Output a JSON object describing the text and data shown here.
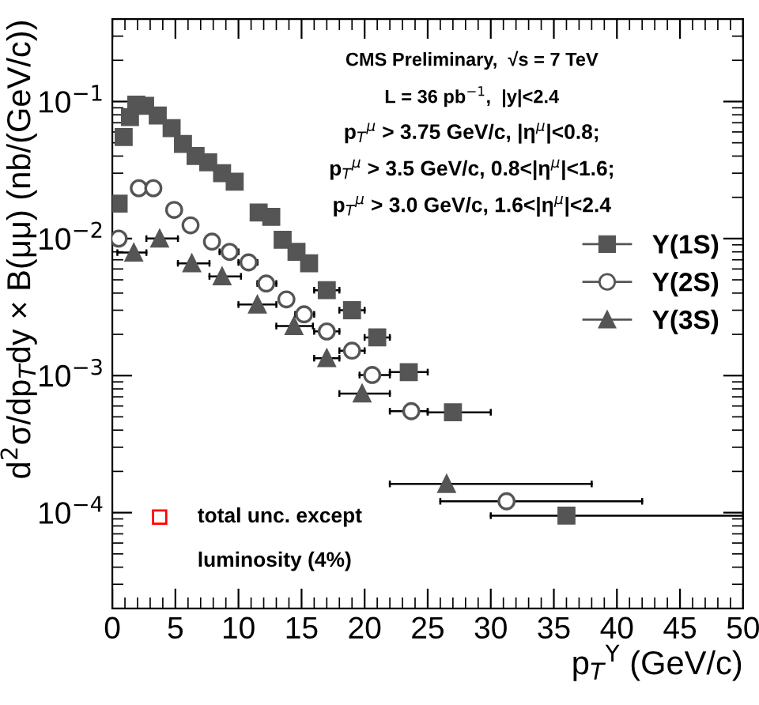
{
  "chart_data": {
    "type": "scatter",
    "xlabel": "p$_{T}$$^{Υ}$ (GeV/c)",
    "ylabel": "d$^{2}$σ/dp$_{T}$dy × B(μμ) (nb/(GeV/c))",
    "log": "y",
    "xlim": [
      0,
      50
    ],
    "ylim": [
      2e-05,
      0.4
    ],
    "xticks": [
      0,
      5,
      10,
      15,
      20,
      25,
      30,
      35,
      40,
      45,
      50
    ],
    "yticks": [
      {
        "value": 0.0001,
        "label": "10$^{−4}$"
      },
      {
        "value": 0.001,
        "label": "10$^{−3}$"
      },
      {
        "value": 0.01,
        "label": "10$^{−2}$"
      },
      {
        "value": 0.1,
        "label": "10$^{−1}$"
      }
    ],
    "grid": false,
    "legend": "right",
    "series": [
      {
        "name": "Υ(1S)",
        "color": "#555555",
        "marker": "square",
        "x": [
          0.5,
          0.9,
          1.4,
          1.9,
          2.6,
          3.6,
          4.7,
          5.6,
          6.6,
          7.6,
          8.7,
          9.7,
          11.6,
          12.6,
          13.5,
          14.6,
          15.6,
          17,
          19,
          21,
          23.5,
          27,
          36
        ],
        "values": [
          0.018,
          0.055,
          0.077,
          0.095,
          0.093,
          0.079,
          0.064,
          0.049,
          0.04,
          0.036,
          0.03,
          0.026,
          0.0155,
          0.0144,
          0.0098,
          0.008,
          0.0066,
          0.0042,
          0.003,
          0.0019,
          0.00106,
          0.00054,
          9.5e-05
        ],
        "xerrors": [
          null,
          null,
          null,
          null,
          null,
          null,
          null,
          null,
          null,
          null,
          null,
          null,
          null,
          null,
          null,
          null,
          null,
          [
            16,
            18
          ],
          [
            18,
            20
          ],
          [
            20,
            22
          ],
          [
            22,
            25
          ],
          [
            25,
            30
          ],
          [
            30,
            50
          ]
        ]
      },
      {
        "name": "Υ(2S)",
        "color": "#555555",
        "marker": "circle",
        "x": [
          0.5,
          2.1,
          3.25,
          4.9,
          6.2,
          7.9,
          9.3,
          10.8,
          12.2,
          13.8,
          15.2,
          17,
          19,
          20.6,
          23.7,
          31.25
        ],
        "values": [
          0.01,
          0.0233,
          0.0233,
          0.0162,
          0.0125,
          0.0095,
          0.008,
          0.0067,
          0.0047,
          0.0036,
          0.0028,
          0.0021,
          0.00152,
          0.00101,
          0.00055,
          0.000121
        ],
        "xerrors": [
          null,
          null,
          null,
          null,
          null,
          null,
          [
            8.5,
            10
          ],
          [
            10,
            11.5
          ],
          [
            11.5,
            13
          ],
          null,
          [
            14.5,
            16
          ],
          [
            16,
            18
          ],
          [
            18,
            20
          ],
          [
            19.6,
            22
          ],
          [
            22,
            25
          ],
          [
            26,
            42
          ]
        ]
      },
      {
        "name": "Υ(3S)",
        "color": "#555555",
        "marker": "triangle",
        "x": [
          1.7,
          3.75,
          6.3,
          8.7,
          11.5,
          14.4,
          17,
          19.8,
          26.5
        ],
        "values": [
          0.0079,
          0.01,
          0.0066,
          0.0053,
          0.0033,
          0.0023,
          0.00134,
          0.00074,
          0.000162
        ],
        "xerrors": [
          [
            0.4,
            2.7
          ],
          [
            2.7,
            5.2
          ],
          [
            5.2,
            7.7
          ],
          [
            7.7,
            10.2
          ],
          [
            10,
            13
          ],
          [
            13,
            15.9
          ],
          [
            16,
            18
          ],
          [
            18,
            22
          ],
          [
            22,
            38
          ]
        ]
      }
    ],
    "annotations": [
      "CMS Preliminary,  √s = 7 TeV",
      "L = 36 pb$^{−1}$,  |y|<2.4",
      "p$_{T}$$^{μ}$ > 3.75 GeV/c, |η$^{μ}$|<0.8;",
      "p$_{T}$$^{μ}$ > 3.5 GeV/c, 0.8<|η$^{μ}$|<1.6;",
      "p$_{T}$$^{μ}$ > 3.0 GeV/c, 1.6<|η$^{μ}$|<2.4",
      "total unc. except",
      "luminosity (4%)"
    ]
  }
}
